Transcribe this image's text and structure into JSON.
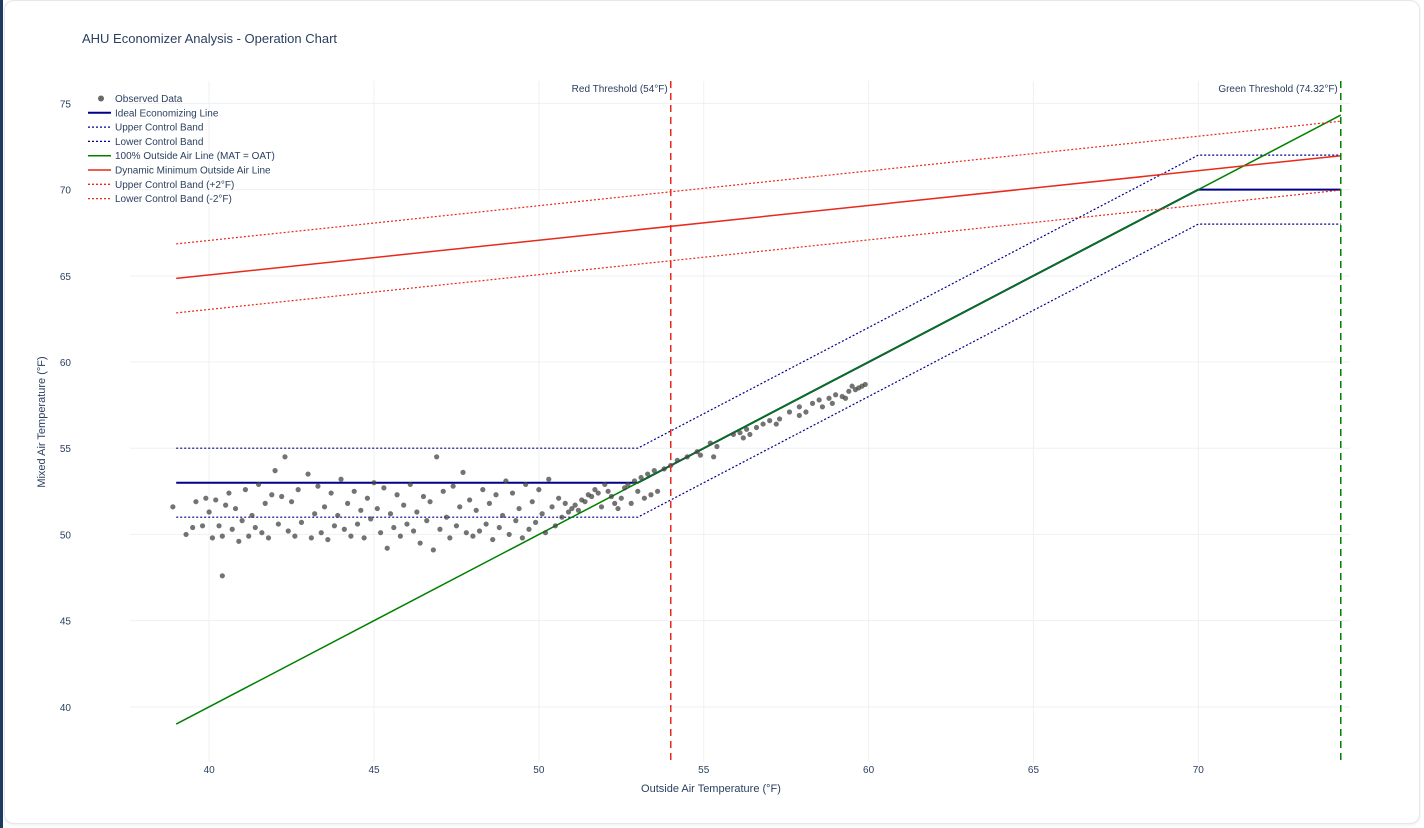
{
  "chart_data": {
    "type": "scatter",
    "title": "AHU Economizer Analysis - Operation Chart",
    "xlabel": "Outside Air Temperature (°F)",
    "ylabel": "Mixed Air Temperature (°F)",
    "xlim": [
      37.6,
      74.6
    ],
    "ylim": [
      36.8,
      76.3
    ],
    "xticks": [
      40,
      45,
      50,
      55,
      60,
      65,
      70
    ],
    "yticks": [
      40,
      45,
      50,
      55,
      60,
      65,
      70,
      75
    ],
    "grid": true,
    "legend_position": "top-left",
    "series": [
      {
        "name": "Observed Data",
        "kind": "markers",
        "color": "#444444",
        "points": [
          [
            38.9,
            51.6
          ],
          [
            39.3,
            50
          ],
          [
            39.5,
            50.4
          ],
          [
            39.6,
            51.9
          ],
          [
            39.8,
            50.5
          ],
          [
            39.9,
            52.1
          ],
          [
            40,
            51.3
          ],
          [
            40.1,
            49.8
          ],
          [
            40.2,
            52
          ],
          [
            40.3,
            50.5
          ],
          [
            40.4,
            47.6
          ],
          [
            40.4,
            49.9
          ],
          [
            40.5,
            51.7
          ],
          [
            40.6,
            52.4
          ],
          [
            40.7,
            50.3
          ],
          [
            40.8,
            51.5
          ],
          [
            40.9,
            49.6
          ],
          [
            41,
            50.8
          ],
          [
            41.1,
            52.6
          ],
          [
            41.2,
            49.9
          ],
          [
            41.3,
            51.1
          ],
          [
            41.4,
            50.4
          ],
          [
            41.5,
            52.9
          ],
          [
            41.6,
            50.1
          ],
          [
            41.7,
            51.8
          ],
          [
            41.8,
            49.8
          ],
          [
            41.9,
            52.3
          ],
          [
            42,
            53.7
          ],
          [
            42.1,
            50.6
          ],
          [
            42.2,
            52.2
          ],
          [
            42.3,
            54.5
          ],
          [
            42.4,
            50.2
          ],
          [
            42.5,
            51.9
          ],
          [
            42.6,
            49.9
          ],
          [
            42.7,
            52.6
          ],
          [
            42.8,
            50.7
          ],
          [
            43,
            53.5
          ],
          [
            43.1,
            49.8
          ],
          [
            43.2,
            51.2
          ],
          [
            43.3,
            52.8
          ],
          [
            43.4,
            50.1
          ],
          [
            43.5,
            51.6
          ],
          [
            43.6,
            49.7
          ],
          [
            43.7,
            52.4
          ],
          [
            43.8,
            50.5
          ],
          [
            43.9,
            51.1
          ],
          [
            44,
            53.2
          ],
          [
            44.1,
            50.3
          ],
          [
            44.2,
            51.8
          ],
          [
            44.3,
            49.9
          ],
          [
            44.4,
            52.5
          ],
          [
            44.5,
            50.6
          ],
          [
            44.6,
            51.4
          ],
          [
            44.7,
            49.8
          ],
          [
            44.8,
            52.1
          ],
          [
            44.9,
            50.9
          ],
          [
            45,
            53
          ],
          [
            45.1,
            51.5
          ],
          [
            45.2,
            50.1
          ],
          [
            45.3,
            52.7
          ],
          [
            45.4,
            49.2
          ],
          [
            45.5,
            51.2
          ],
          [
            45.6,
            50.4
          ],
          [
            45.7,
            52.3
          ],
          [
            45.8,
            49.9
          ],
          [
            45.9,
            51.7
          ],
          [
            46,
            50.6
          ],
          [
            46.1,
            52.9
          ],
          [
            46.2,
            50.2
          ],
          [
            46.3,
            51.3
          ],
          [
            46.4,
            49.5
          ],
          [
            46.5,
            52.2
          ],
          [
            46.6,
            50.8
          ],
          [
            46.7,
            51.9
          ],
          [
            46.8,
            49.1
          ],
          [
            46.9,
            54.5
          ],
          [
            47,
            50.3
          ],
          [
            47.1,
            52.5
          ],
          [
            47.2,
            51
          ],
          [
            47.3,
            49.8
          ],
          [
            47.4,
            52.8
          ],
          [
            47.5,
            50.5
          ],
          [
            47.6,
            51.6
          ],
          [
            47.7,
            53.6
          ],
          [
            47.8,
            50.1
          ],
          [
            47.9,
            52
          ],
          [
            48,
            49.9
          ],
          [
            48.1,
            51.4
          ],
          [
            48.2,
            50.2
          ],
          [
            48.3,
            52.6
          ],
          [
            48.4,
            50.6
          ],
          [
            48.5,
            51.8
          ],
          [
            48.6,
            49.7
          ],
          [
            48.7,
            52.3
          ],
          [
            48.8,
            50.4
          ],
          [
            48.9,
            51.1
          ],
          [
            49,
            53.1
          ],
          [
            49.1,
            50
          ],
          [
            49.2,
            52.4
          ],
          [
            49.3,
            50.8
          ],
          [
            49.4,
            51.5
          ],
          [
            49.5,
            49.8
          ],
          [
            49.6,
            52.9
          ],
          [
            49.7,
            50.3
          ],
          [
            49.8,
            51.9
          ],
          [
            49.9,
            50.7
          ],
          [
            50,
            52.6
          ],
          [
            50.1,
            51.2
          ],
          [
            50.2,
            50.1
          ],
          [
            50.3,
            53.2
          ],
          [
            50.4,
            51.6
          ],
          [
            50.5,
            50.5
          ],
          [
            50.6,
            52.1
          ],
          [
            50.7,
            51
          ],
          [
            50.8,
            51.8
          ],
          [
            50.9,
            51.3
          ],
          [
            51,
            51.5
          ],
          [
            51.1,
            51.7
          ],
          [
            51.2,
            51.4
          ],
          [
            51.3,
            52
          ],
          [
            51.4,
            51.9
          ],
          [
            51.5,
            52.3
          ],
          [
            51.6,
            52.2
          ],
          [
            51.7,
            52.6
          ],
          [
            51.8,
            52.4
          ],
          [
            51.9,
            51.6
          ],
          [
            52,
            52.9
          ],
          [
            52.1,
            52.5
          ],
          [
            52.2,
            52.2
          ],
          [
            52.3,
            51.8
          ],
          [
            52.4,
            51.5
          ],
          [
            52.5,
            52.1
          ],
          [
            52.6,
            52.7
          ],
          [
            52.7,
            52.9
          ],
          [
            52.8,
            51.8
          ],
          [
            52.9,
            53.1
          ],
          [
            53,
            52.5
          ],
          [
            53.1,
            53.3
          ],
          [
            53.2,
            52.1
          ],
          [
            53.3,
            53.5
          ],
          [
            53.4,
            52.3
          ],
          [
            53.5,
            53.7
          ],
          [
            53.6,
            52.5
          ],
          [
            53.8,
            53.8
          ],
          [
            54,
            54
          ],
          [
            54.2,
            54.3
          ],
          [
            54.5,
            54.5
          ],
          [
            54.8,
            54.8
          ],
          [
            55.2,
            55.3
          ],
          [
            55.3,
            54.5
          ],
          [
            55.9,
            55.8
          ],
          [
            56.1,
            55.9
          ],
          [
            56.3,
            56.1
          ],
          [
            56.4,
            55.8
          ],
          [
            56.6,
            56.2
          ],
          [
            56.8,
            56.4
          ],
          [
            57,
            56.6
          ],
          [
            57.3,
            56.7
          ],
          [
            57.6,
            57.1
          ],
          [
            57.9,
            57.4
          ],
          [
            58.1,
            57.1
          ],
          [
            58.3,
            57.6
          ],
          [
            58.5,
            57.8
          ],
          [
            58.6,
            57.4
          ],
          [
            58.8,
            57.9
          ],
          [
            59,
            58.1
          ],
          [
            59.2,
            58
          ],
          [
            59.4,
            58.3
          ],
          [
            59.5,
            58.6
          ],
          [
            59.6,
            58.4
          ],
          [
            59.7,
            58.5
          ],
          [
            59.8,
            58.6
          ],
          [
            59.9,
            58.7
          ],
          [
            59.3,
            57.9
          ],
          [
            58.9,
            57.6
          ],
          [
            57.9,
            56.9
          ],
          [
            57.2,
            56.4
          ],
          [
            56.2,
            55.6
          ],
          [
            55.4,
            55.1
          ],
          [
            54.9,
            54.6
          ]
        ]
      },
      {
        "name": "Ideal Economizing Line",
        "kind": "line",
        "dash": "solid",
        "color": "#00008b",
        "width": 2,
        "points": [
          [
            39,
            53
          ],
          [
            53,
            53
          ],
          [
            70,
            70
          ],
          [
            74.32,
            70
          ]
        ]
      },
      {
        "name": "Upper Control Band",
        "kind": "line",
        "dash": "dot",
        "color": "#00008b",
        "width": 1.2,
        "points": [
          [
            39,
            55
          ],
          [
            53,
            55
          ],
          [
            70,
            72
          ],
          [
            74.32,
            72
          ]
        ]
      },
      {
        "name": "Lower Control Band",
        "kind": "line",
        "dash": "dot",
        "color": "#00008b",
        "width": 1.2,
        "points": [
          [
            39,
            51
          ],
          [
            53,
            51
          ],
          [
            70,
            68
          ],
          [
            74.32,
            68
          ]
        ]
      },
      {
        "name": "100% Outside Air Line (MAT = OAT)",
        "kind": "line",
        "dash": "solid",
        "color": "#008000",
        "width": 1.5,
        "points": [
          [
            39,
            39
          ],
          [
            74.32,
            74.32
          ]
        ]
      },
      {
        "name": "Dynamic Minimum Outside Air Line",
        "kind": "line",
        "dash": "solid",
        "color": "#e8291b",
        "width": 1.5,
        "points": [
          [
            39,
            64.85
          ],
          [
            74.32,
            71.97
          ]
        ]
      },
      {
        "name": "Upper Control Band (+2°F)",
        "kind": "line",
        "dash": "dot",
        "color": "#e8291b",
        "width": 1.2,
        "points": [
          [
            39,
            66.85
          ],
          [
            74.32,
            73.97
          ]
        ]
      },
      {
        "name": "Lower Control Band (-2°F)",
        "kind": "line",
        "dash": "dot",
        "color": "#e8291b",
        "width": 1.2,
        "points": [
          [
            39,
            62.85
          ],
          [
            74.32,
            69.97
          ]
        ]
      }
    ],
    "vlines": [
      {
        "x": 54,
        "label": "Red Threshold (54°F)",
        "color": "#e8291b",
        "dash": "dash"
      },
      {
        "x": 74.32,
        "label": "Green Threshold (74.32°F)",
        "color": "#008000",
        "dash": "dash"
      }
    ]
  }
}
